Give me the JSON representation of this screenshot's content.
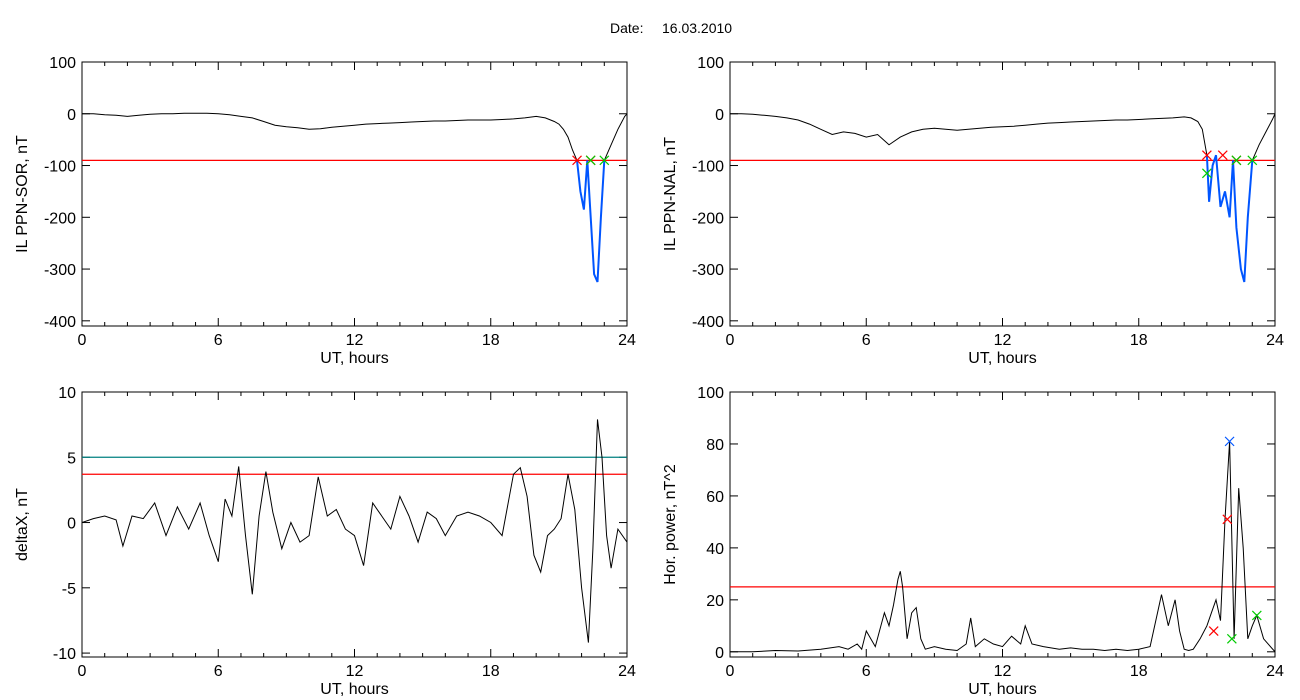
{
  "figure": {
    "date_label": "Date:",
    "date_value": "16.03.2010"
  },
  "chart_data": [
    {
      "id": "top-left",
      "type": "line",
      "xlabel": "UT, hours",
      "ylabel": "IL PPN-SOR, nT",
      "xlim": [
        0,
        24
      ],
      "ylim": [
        -410,
        100
      ],
      "xticks": [
        0,
        6,
        12,
        18,
        24
      ],
      "yticks": [
        100,
        0,
        -100,
        -200,
        -300,
        -400
      ],
      "grid": false,
      "thresholds": [
        {
          "value": -90,
          "color": "#ff0000"
        }
      ],
      "series": [
        {
          "color": "#000000",
          "x": [
            0,
            0.5,
            1.0,
            1.5,
            2.0,
            2.5,
            3.0,
            3.5,
            4.0,
            4.5,
            5.0,
            5.5,
            6.0,
            6.5,
            7.0,
            7.5,
            8.0,
            8.5,
            9.0,
            9.5,
            10.0,
            10.5,
            11.0,
            11.5,
            12.0,
            12.5,
            13.0,
            13.5,
            14.0,
            14.5,
            15.0,
            15.5,
            16.0,
            16.5,
            17.0,
            17.5,
            18.0,
            18.5,
            19.0,
            19.5,
            20.0,
            20.4,
            20.8,
            21.0,
            21.2,
            21.4,
            21.6,
            21.8
          ],
          "y": [
            0,
            0,
            -2,
            -3,
            -5,
            -3,
            -1,
            0,
            0,
            1,
            1,
            1,
            0,
            -2,
            -5,
            -8,
            -15,
            -22,
            -25,
            -27,
            -30,
            -29,
            -26,
            -24,
            -22,
            -20,
            -19,
            -18,
            -17,
            -16,
            -15,
            -14,
            -14,
            -13,
            -12,
            -12,
            -12,
            -11,
            -10,
            -8,
            -5,
            -8,
            -15,
            -20,
            -30,
            -45,
            -70,
            -90
          ]
        },
        {
          "color": "#0055ff",
          "x": [
            21.8,
            21.95,
            22.1,
            22.25,
            22.4,
            22.55,
            22.7,
            22.85,
            23.0
          ],
          "y": [
            -90,
            -150,
            -185,
            -90,
            -200,
            -310,
            -325,
            -200,
            -90
          ]
        },
        {
          "color": "#000000",
          "x": [
            23.0,
            23.3,
            23.6,
            23.9,
            24.0
          ],
          "y": [
            -90,
            -60,
            -30,
            -5,
            0
          ]
        }
      ],
      "markers": [
        {
          "x": 21.8,
          "y": -90,
          "color": "#ff0000"
        },
        {
          "x": 22.4,
          "y": -90,
          "color": "#ff0000"
        },
        {
          "x": 22.4,
          "y": -90,
          "color": "#00cc00"
        },
        {
          "x": 23.0,
          "y": -90,
          "color": "#00cc00"
        }
      ]
    },
    {
      "id": "top-right",
      "type": "line",
      "xlabel": "UT, hours",
      "ylabel": "IL PPN-NAL, nT",
      "xlim": [
        0,
        24
      ],
      "ylim": [
        -410,
        100
      ],
      "xticks": [
        0,
        6,
        12,
        18,
        24
      ],
      "yticks": [
        100,
        0,
        -100,
        -200,
        -300,
        -400
      ],
      "grid": false,
      "thresholds": [
        {
          "value": -90,
          "color": "#ff0000"
        }
      ],
      "series": [
        {
          "color": "#000000",
          "x": [
            0,
            0.5,
            1.0,
            1.5,
            2.0,
            2.5,
            3.0,
            3.5,
            4.0,
            4.5,
            5.0,
            5.5,
            6.0,
            6.5,
            7.0,
            7.5,
            8.0,
            8.5,
            9.0,
            9.5,
            10.0,
            10.5,
            11.0,
            11.5,
            12.0,
            12.5,
            13.0,
            13.5,
            14.0,
            14.5,
            15.0,
            15.5,
            16.0,
            16.5,
            17.0,
            17.5,
            18.0,
            18.5,
            19.0,
            19.5,
            20.0,
            20.3,
            20.6,
            20.8,
            21.0
          ],
          "y": [
            0,
            0,
            -1,
            -3,
            -5,
            -8,
            -12,
            -20,
            -30,
            -40,
            -35,
            -38,
            -45,
            -40,
            -60,
            -45,
            -35,
            -30,
            -28,
            -30,
            -32,
            -30,
            -28,
            -26,
            -25,
            -24,
            -22,
            -20,
            -18,
            -17,
            -16,
            -15,
            -14,
            -13,
            -12,
            -12,
            -11,
            -10,
            -9,
            -8,
            -6,
            -8,
            -15,
            -30,
            -80
          ]
        },
        {
          "color": "#0055ff",
          "x": [
            21.0,
            21.1,
            21.25,
            21.4,
            21.6,
            21.8,
            22.0,
            22.15,
            22.3,
            22.5,
            22.65,
            22.8,
            23.0
          ],
          "y": [
            -80,
            -170,
            -100,
            -80,
            -180,
            -150,
            -200,
            -90,
            -220,
            -300,
            -325,
            -200,
            -90
          ]
        },
        {
          "color": "#000000",
          "x": [
            23.0,
            23.3,
            23.6,
            23.9,
            24.0
          ],
          "y": [
            -90,
            -60,
            -35,
            -10,
            0
          ]
        }
      ],
      "markers": [
        {
          "x": 21.0,
          "y": -80,
          "color": "#ff0000"
        },
        {
          "x": 21.0,
          "y": -115,
          "color": "#00cc00"
        },
        {
          "x": 21.7,
          "y": -80,
          "color": "#ff0000"
        },
        {
          "x": 22.3,
          "y": -90,
          "color": "#ff0000"
        },
        {
          "x": 22.3,
          "y": -90,
          "color": "#00cc00"
        },
        {
          "x": 23.0,
          "y": -90,
          "color": "#00cc00"
        }
      ]
    },
    {
      "id": "bottom-left",
      "type": "line",
      "xlabel": "UT, hours",
      "ylabel": "deltaX, nT",
      "xlim": [
        0,
        24
      ],
      "ylim": [
        -10.3,
        10
      ],
      "xticks": [
        0,
        6,
        12,
        18,
        24
      ],
      "yticks": [
        10,
        5,
        0,
        -5,
        -10
      ],
      "grid": false,
      "thresholds": [
        {
          "value": 5,
          "color": "#008080"
        },
        {
          "value": 3.7,
          "color": "#ff0000"
        }
      ],
      "series": [
        {
          "color": "#000000",
          "x": [
            0,
            0.5,
            1.0,
            1.5,
            1.8,
            2.2,
            2.7,
            3.2,
            3.7,
            4.2,
            4.7,
            5.2,
            5.6,
            6.0,
            6.3,
            6.6,
            6.9,
            7.2,
            7.5,
            7.8,
            8.1,
            8.4,
            8.8,
            9.2,
            9.6,
            10.0,
            10.4,
            10.8,
            11.2,
            11.6,
            12.0,
            12.4,
            12.8,
            13.2,
            13.6,
            14.0,
            14.4,
            14.8,
            15.2,
            15.6,
            16.0,
            16.5,
            17.0,
            17.5,
            18.0,
            18.5,
            19.0,
            19.3,
            19.6,
            19.9,
            20.2,
            20.5,
            20.8,
            21.1,
            21.4,
            21.7,
            22.0,
            22.3,
            22.5,
            22.7,
            22.9,
            23.1,
            23.3,
            23.6,
            24.0
          ],
          "y": [
            0,
            0.3,
            0.5,
            0.2,
            -1.8,
            0.5,
            0.3,
            1.5,
            -1.0,
            1.2,
            -0.5,
            1.5,
            -1.0,
            -3.0,
            1.8,
            0.5,
            4.3,
            -1.0,
            -5.5,
            0.5,
            3.9,
            0.8,
            -2.0,
            0,
            -1.5,
            -1.0,
            3.5,
            0.5,
            1.0,
            -0.5,
            -1.0,
            -3.3,
            1.5,
            0.5,
            -0.5,
            2.0,
            0.5,
            -1.5,
            0.8,
            0.3,
            -1.0,
            0.5,
            0.8,
            0.5,
            0,
            -1.0,
            3.7,
            4.2,
            2.0,
            -2.5,
            -3.8,
            -1.0,
            -0.5,
            0.3,
            3.7,
            1.0,
            -5.0,
            -9.2,
            -2.0,
            7.9,
            5.0,
            -1.0,
            -3.5,
            -0.5,
            -1.5
          ]
        }
      ],
      "markers": []
    },
    {
      "id": "bottom-right",
      "type": "line",
      "xlabel": "UT, hours",
      "ylabel": "Hor. power, nT^2",
      "xlim": [
        0,
        24
      ],
      "ylim": [
        -2,
        100
      ],
      "xticks": [
        0,
        6,
        12,
        18,
        24
      ],
      "yticks": [
        100,
        80,
        60,
        40,
        20,
        0
      ],
      "grid": false,
      "thresholds": [
        {
          "value": 25,
          "color": "#ff0000"
        }
      ],
      "series": [
        {
          "color": "#000000",
          "x": [
            0,
            1.0,
            2.0,
            3.0,
            4.0,
            4.8,
            5.2,
            5.6,
            5.8,
            6.0,
            6.4,
            6.8,
            7.0,
            7.2,
            7.4,
            7.5,
            7.6,
            7.8,
            8.0,
            8.2,
            8.4,
            8.6,
            9.0,
            9.5,
            10.0,
            10.4,
            10.6,
            10.8,
            11.2,
            11.6,
            12.0,
            12.4,
            12.8,
            13.0,
            13.3,
            13.8,
            14.5,
            15.0,
            15.5,
            16.0,
            16.5,
            17.0,
            17.5,
            18.0,
            18.5,
            19.0,
            19.3,
            19.6,
            19.8,
            20.0,
            20.2,
            20.4,
            20.7,
            21.0,
            21.2,
            21.4,
            21.6,
            21.8,
            22.0,
            22.2,
            22.4,
            22.6,
            22.8,
            23.0,
            23.2,
            23.5,
            24.0
          ],
          "y": [
            0,
            0,
            0.5,
            0.3,
            1.0,
            2.0,
            1.0,
            3.0,
            1.0,
            8.0,
            2.0,
            15.0,
            10.0,
            18.0,
            28.0,
            31.0,
            25.0,
            5.0,
            15.0,
            17.0,
            5.0,
            1.0,
            2.0,
            1.0,
            0.5,
            3.0,
            13.0,
            2.0,
            5.0,
            3.0,
            2.0,
            6.0,
            3.0,
            10.0,
            3.0,
            2.0,
            1.0,
            1.5,
            1.0,
            1.0,
            0.5,
            1.0,
            0.5,
            1.0,
            2.0,
            22.0,
            10.0,
            20.0,
            8.0,
            1.0,
            0.5,
            1.0,
            5.0,
            10.0,
            15.0,
            20.0,
            12.0,
            51.0,
            81.0,
            5.0,
            63.0,
            40.0,
            5.0,
            10.0,
            14.0,
            5.0,
            0
          ]
        }
      ],
      "markers": [
        {
          "x": 21.3,
          "y": 8,
          "color": "#ff0000"
        },
        {
          "x": 21.9,
          "y": 51,
          "color": "#ff0000"
        },
        {
          "x": 22.0,
          "y": 81,
          "color": "#0055ff"
        },
        {
          "x": 22.1,
          "y": 5,
          "color": "#00cc00"
        },
        {
          "x": 23.2,
          "y": 14,
          "color": "#00cc00"
        }
      ]
    }
  ]
}
